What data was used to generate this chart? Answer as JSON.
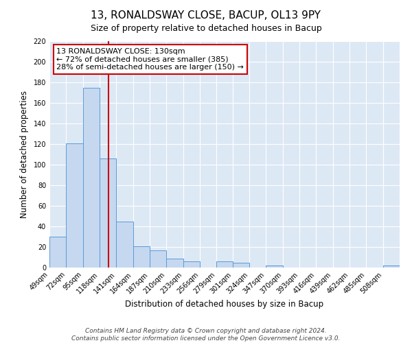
{
  "title": "13, RONALDSWAY CLOSE, BACUP, OL13 9PY",
  "subtitle": "Size of property relative to detached houses in Bacup",
  "xlabel": "Distribution of detached houses by size in Bacup",
  "ylabel": "Number of detached properties",
  "bin_labels": [
    "49sqm",
    "72sqm",
    "95sqm",
    "118sqm",
    "141sqm",
    "164sqm",
    "187sqm",
    "210sqm",
    "233sqm",
    "256sqm",
    "279sqm",
    "301sqm",
    "324sqm",
    "347sqm",
    "370sqm",
    "393sqm",
    "416sqm",
    "439sqm",
    "462sqm",
    "485sqm",
    "508sqm"
  ],
  "bar_heights": [
    30,
    121,
    175,
    106,
    45,
    21,
    17,
    9,
    6,
    0,
    6,
    5,
    0,
    2,
    0,
    0,
    0,
    0,
    0,
    0,
    2
  ],
  "bin_edges": [
    49,
    72,
    95,
    118,
    141,
    164,
    187,
    210,
    233,
    256,
    279,
    301,
    324,
    347,
    370,
    393,
    416,
    439,
    462,
    485,
    508,
    531
  ],
  "bar_color": "#c5d8f0",
  "bar_edge_color": "#5b9bd5",
  "vline_x": 130,
  "vline_color": "#cc0000",
  "ylim": [
    0,
    220
  ],
  "yticks": [
    0,
    20,
    40,
    60,
    80,
    100,
    120,
    140,
    160,
    180,
    200,
    220
  ],
  "annotation_title": "13 RONALDSWAY CLOSE: 130sqm",
  "annotation_line1": "← 72% of detached houses are smaller (385)",
  "annotation_line2": "28% of semi-detached houses are larger (150) →",
  "annotation_box_color": "#ffffff",
  "annotation_box_edge": "#cc0000",
  "footer_line1": "Contains HM Land Registry data © Crown copyright and database right 2024.",
  "footer_line2": "Contains public sector information licensed under the Open Government Licence v3.0.",
  "fig_background_color": "#ffffff",
  "plot_background_color": "#dde8f5",
  "grid_color": "#ffffff",
  "title_fontsize": 11,
  "subtitle_fontsize": 9,
  "axis_label_fontsize": 8.5,
  "tick_fontsize": 7,
  "annotation_fontsize": 8,
  "footer_fontsize": 6.5
}
